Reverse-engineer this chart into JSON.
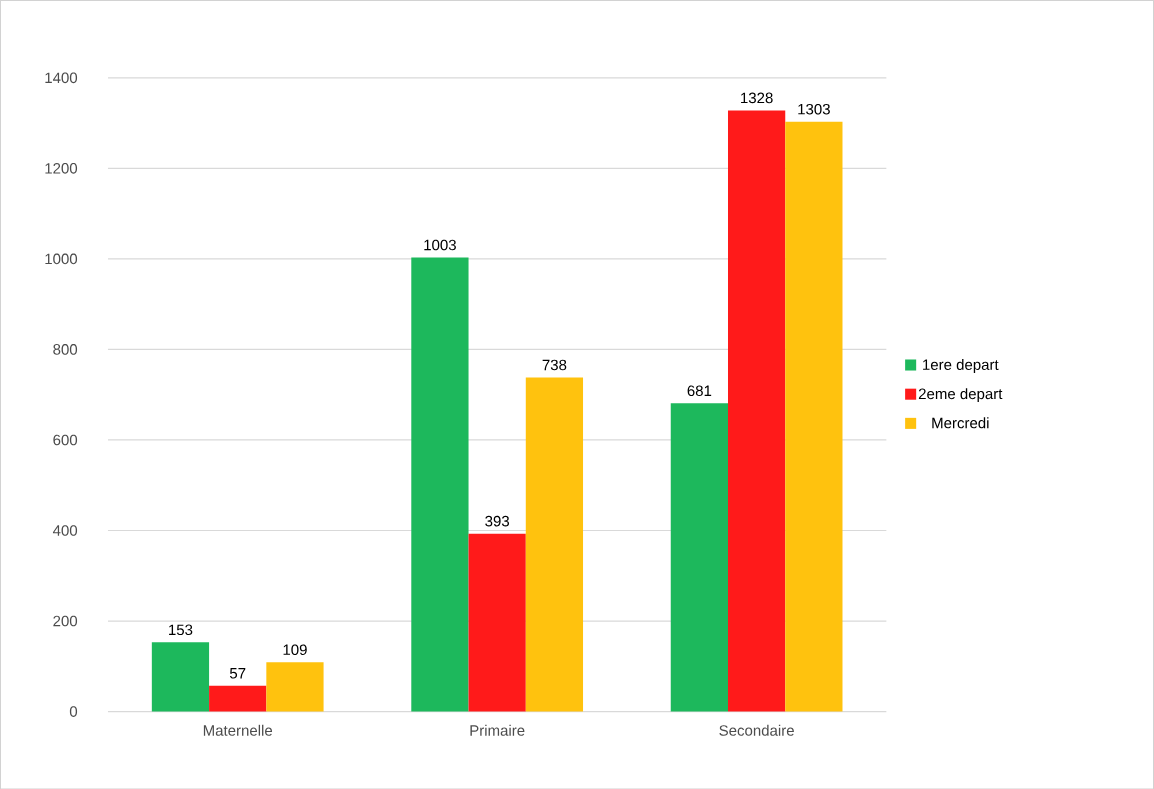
{
  "chart_data": {
    "type": "bar",
    "categories": [
      "Maternelle",
      "Primaire",
      "Secondaire"
    ],
    "series": [
      {
        "name": "1ere depart",
        "color": "#1db85c",
        "values": [
          153,
          1003,
          681
        ]
      },
      {
        "name": "2eme depart",
        "color": "#ff1a1a",
        "values": [
          57,
          393,
          1328
        ]
      },
      {
        "name": "Mercredi",
        "color": "#ffc20e",
        "values": [
          109,
          738,
          1303
        ]
      }
    ],
    "ylim": [
      0,
      1400
    ],
    "yticks": [
      0,
      200,
      400,
      600,
      800,
      1000,
      1200,
      1400
    ],
    "grid": "y",
    "legend": "right",
    "data_labels": true
  }
}
